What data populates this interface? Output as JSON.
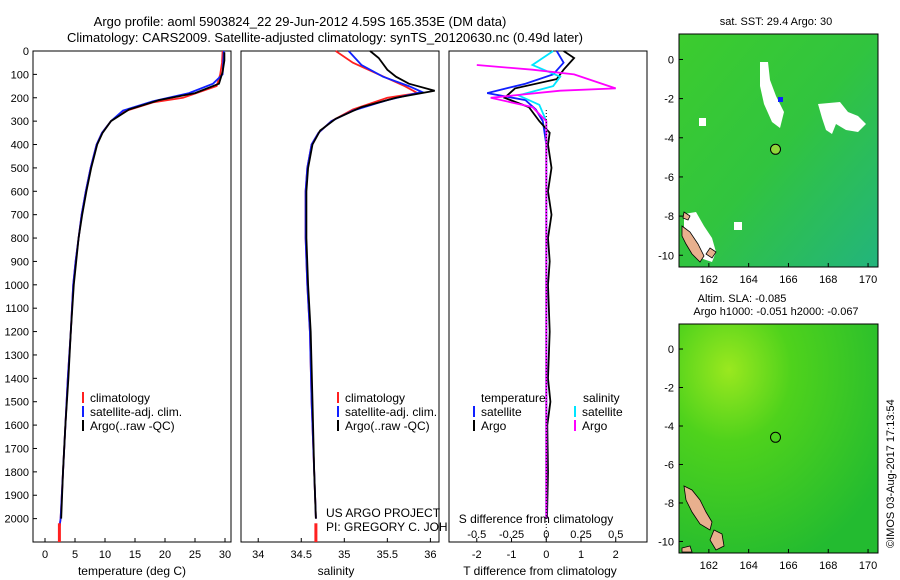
{
  "title": {
    "line1": "Argo profile: aoml 5903824_22 29-Jun-2012 4.59S 165.353E (DM data)",
    "line2": "Climatology: CARS2009. Satellite-adjusted climatology: synTS_20120630.nc (0.49d later)"
  },
  "colors": {
    "climatology": "#ff2020",
    "satellite": "#1020ff",
    "argo": "#000000",
    "sat_salinity": "#00e5ff",
    "argo_salinity": "#ff00ff",
    "map_green": "#2fc82f"
  },
  "chart_data": [
    {
      "type": "line",
      "name": "temperature",
      "xlabel": "temperature (deg C)",
      "ylabel": "",
      "xlim": [
        -2,
        31
      ],
      "ylim": [
        2100,
        0
      ],
      "xticks": [
        0,
        5,
        10,
        15,
        20,
        25,
        30
      ],
      "yticks": [
        0,
        100,
        200,
        300,
        400,
        500,
        600,
        700,
        800,
        900,
        1000,
        1100,
        1200,
        1300,
        1400,
        1500,
        1600,
        1700,
        1800,
        1900,
        2000
      ],
      "legend": [
        "climatology",
        "satellite-adj. clim.",
        "Argo(..raw -QC)"
      ],
      "series": [
        {
          "name": "climatology",
          "color": "#ff2020",
          "points": [
            [
              29.6,
              0
            ],
            [
              29.5,
              50
            ],
            [
              29.2,
              100
            ],
            [
              28.6,
              150
            ],
            [
              23,
              200
            ],
            [
              18,
              220
            ],
            [
              13,
              260
            ],
            [
              11,
              300
            ],
            [
              9.5,
              350
            ],
            [
              8.6,
              400
            ],
            [
              7.6,
              500
            ],
            [
              6.8,
              600
            ],
            [
              6.1,
              700
            ],
            [
              5.6,
              800
            ],
            [
              5.1,
              900
            ],
            [
              4.7,
              1000
            ],
            [
              4.3,
              1200
            ],
            [
              3.8,
              1400
            ],
            [
              3.4,
              1600
            ],
            [
              3.0,
              1800
            ],
            [
              2.6,
              2000
            ],
            [
              2.4,
              2040
            ]
          ]
        },
        {
          "name": "satellite-adj. clim.",
          "color": "#1020ff",
          "points": [
            [
              29.8,
              0
            ],
            [
              29.7,
              50
            ],
            [
              29.6,
              100
            ],
            [
              28,
              140
            ],
            [
              24,
              180
            ],
            [
              18,
              215
            ],
            [
              13,
              255
            ],
            [
              11,
              300
            ],
            [
              9.5,
              350
            ],
            [
              8.6,
              400
            ],
            [
              7.6,
              500
            ],
            [
              6.8,
              600
            ],
            [
              6.1,
              700
            ],
            [
              5.6,
              800
            ],
            [
              5.1,
              900
            ],
            [
              4.7,
              1000
            ],
            [
              4.3,
              1200
            ],
            [
              3.8,
              1400
            ],
            [
              3.4,
              1600
            ],
            [
              3.0,
              1800
            ],
            [
              2.6,
              2000
            ],
            [
              2.4,
              2040
            ]
          ]
        },
        {
          "name": "Argo(..raw -QC)",
          "color": "#000000",
          "points": [
            [
              29.9,
              5
            ],
            [
              29.9,
              40
            ],
            [
              29.6,
              90
            ],
            [
              29,
              140
            ],
            [
              25,
              180
            ],
            [
              19,
              210
            ],
            [
              14,
              250
            ],
            [
              11,
              300
            ],
            [
              9.6,
              350
            ],
            [
              8.7,
              400
            ],
            [
              7.7,
              500
            ],
            [
              6.9,
              600
            ],
            [
              6.2,
              700
            ],
            [
              5.6,
              800
            ],
            [
              5.2,
              900
            ],
            [
              4.8,
              1000
            ],
            [
              4.3,
              1200
            ],
            [
              3.9,
              1400
            ],
            [
              3.4,
              1600
            ],
            [
              3.0,
              1800
            ],
            [
              2.7,
              2000
            ]
          ]
        }
      ]
    },
    {
      "type": "line",
      "name": "salinity",
      "xlabel": "salinity",
      "ylabel": "",
      "xlim": [
        33.8,
        36.1
      ],
      "ylim": [
        2100,
        0
      ],
      "xticks": [
        34,
        34.5,
        35,
        35.5,
        36
      ],
      "legend": [
        "climatology",
        "satellite-adj. clim.",
        "Argo(..raw -QC)"
      ],
      "annotation": [
        "US ARGO PROJECT",
        "PI: GREGORY C. JOHNSON"
      ],
      "series": [
        {
          "name": "climatology",
          "color": "#ff2020",
          "points": [
            [
              34.9,
              0
            ],
            [
              35.1,
              50
            ],
            [
              35.4,
              100
            ],
            [
              35.7,
              150
            ],
            [
              35.85,
              180
            ],
            [
              35.5,
              200
            ],
            [
              35.1,
              250
            ],
            [
              34.85,
              300
            ],
            [
              34.7,
              350
            ],
            [
              34.62,
              400
            ],
            [
              34.57,
              500
            ],
            [
              34.55,
              600
            ],
            [
              34.55,
              800
            ],
            [
              34.57,
              1000
            ],
            [
              34.6,
              1200
            ],
            [
              34.62,
              1500
            ],
            [
              34.65,
              1800
            ],
            [
              34.67,
              2000
            ]
          ]
        },
        {
          "name": "satellite-adj. clim.",
          "color": "#1020ff",
          "points": [
            [
              35.05,
              0
            ],
            [
              35.2,
              60
            ],
            [
              35.45,
              110
            ],
            [
              35.75,
              150
            ],
            [
              35.9,
              175
            ],
            [
              35.5,
              210
            ],
            [
              35.1,
              255
            ],
            [
              34.85,
              300
            ],
            [
              34.7,
              350
            ],
            [
              34.62,
              400
            ],
            [
              34.57,
              500
            ],
            [
              34.55,
              600
            ],
            [
              34.55,
              800
            ],
            [
              34.57,
              1000
            ],
            [
              34.6,
              1200
            ],
            [
              34.62,
              1500
            ],
            [
              34.65,
              1800
            ],
            [
              34.67,
              2000
            ]
          ]
        },
        {
          "name": "Argo(..raw -QC)",
          "color": "#000000",
          "points": [
            [
              35.3,
              0
            ],
            [
              35.4,
              30
            ],
            [
              35.5,
              80
            ],
            [
              35.6,
              110
            ],
            [
              35.75,
              140
            ],
            [
              36.05,
              170
            ],
            [
              35.6,
              200
            ],
            [
              35.2,
              240
            ],
            [
              34.9,
              290
            ],
            [
              34.72,
              340
            ],
            [
              34.63,
              400
            ],
            [
              34.58,
              500
            ],
            [
              34.56,
              600
            ],
            [
              34.56,
              800
            ],
            [
              34.58,
              1000
            ],
            [
              34.61,
              1200
            ],
            [
              34.63,
              1500
            ],
            [
              34.65,
              1800
            ],
            [
              34.67,
              2000
            ]
          ]
        }
      ]
    },
    {
      "type": "line",
      "name": "differences",
      "xlabel": "T difference from climatology",
      "x2label": "S difference from climatology",
      "xlim": [
        -2.8,
        2.9
      ],
      "ylim": [
        2100,
        0
      ],
      "xticks": [
        -2,
        -1,
        0,
        1,
        2
      ],
      "x2ticks": [
        -0.5,
        -0.25,
        0,
        0.25,
        0.5
      ],
      "legend": {
        "temperature": [
          "satellite",
          "Argo"
        ],
        "salinity": [
          "satellite",
          "Argo"
        ]
      },
      "series": [
        {
          "name": "temperature satellite",
          "color": "#1020ff",
          "scale": "T",
          "points": [
            [
              0.3,
              0
            ],
            [
              0.5,
              50
            ],
            [
              0.2,
              100
            ],
            [
              -0.6,
              140
            ],
            [
              -1.7,
              180
            ],
            [
              -0.6,
              210
            ],
            [
              -0.3,
              250
            ],
            [
              -0.1,
              300
            ],
            [
              0,
              400
            ],
            [
              0,
              800
            ],
            [
              0,
              1200
            ],
            [
              0,
              1600
            ],
            [
              0,
              2000
            ]
          ]
        },
        {
          "name": "temperature Argo",
          "color": "#000000",
          "scale": "T",
          "points": [
            [
              0.5,
              0
            ],
            [
              0.8,
              30
            ],
            [
              0.5,
              80
            ],
            [
              0.3,
              120
            ],
            [
              -0.9,
              160
            ],
            [
              -1.2,
              200
            ],
            [
              -0.5,
              240
            ],
            [
              -0.2,
              300
            ],
            [
              0.1,
              350
            ],
            [
              0.05,
              400
            ],
            [
              0.15,
              500
            ],
            [
              0.05,
              600
            ],
            [
              0.15,
              700
            ],
            [
              0.05,
              800
            ],
            [
              0.1,
              900
            ],
            [
              0.05,
              1000
            ],
            [
              0.1,
              1200
            ],
            [
              0.05,
              1400
            ],
            [
              0.12,
              1500
            ],
            [
              0.03,
              1600
            ],
            [
              0.05,
              1800
            ],
            [
              0.02,
              2000
            ]
          ]
        },
        {
          "name": "salinity satellite",
          "color": "#00e5ff",
          "scale": "S",
          "points": [
            [
              0.05,
              0
            ],
            [
              -0.1,
              60
            ],
            [
              0.1,
              110
            ],
            [
              0.05,
              150
            ],
            [
              -0.2,
              190
            ],
            [
              -0.05,
              230
            ],
            [
              0,
              300
            ],
            [
              0,
              800
            ],
            [
              0,
              1200
            ],
            [
              0,
              1600
            ],
            [
              0,
              2000
            ]
          ]
        },
        {
          "name": "salinity Argo",
          "color": "#ff00ff",
          "scale": "S",
          "points": [
            [
              -0.5,
              60
            ],
            [
              -0.1,
              80
            ],
            [
              0.2,
              100
            ],
            [
              0.5,
              160
            ],
            [
              0.1,
              170
            ],
            [
              -0.4,
              200
            ],
            [
              -0.1,
              240
            ],
            [
              0,
              300
            ],
            [
              0,
              2000
            ]
          ]
        }
      ]
    }
  ],
  "maps": [
    {
      "title": "sat. SST: 29.4 Argo: 30",
      "xticks": [
        162,
        164,
        166,
        168,
        170
      ],
      "xlim": [
        160.5,
        170.5
      ],
      "yticks": [
        0,
        -2,
        -4,
        -6,
        -8,
        -10
      ],
      "ylim": [
        -10.6,
        1.3
      ],
      "marker": [
        165.35,
        -4.59
      ]
    },
    {
      "title_line1": "Altim. SLA: -0.085",
      "title_line2": "Argo h1000: -0.051 h2000: -0.067",
      "xticks": [
        162,
        164,
        166,
        168,
        170
      ],
      "xlim": [
        160.5,
        170.5
      ],
      "yticks": [
        0,
        -2,
        -4,
        -6,
        -8,
        -10
      ],
      "ylim": [
        -10.6,
        1.3
      ],
      "marker": [
        165.35,
        -4.59
      ]
    }
  ],
  "footer": "©IMOS 03-Aug-2017 17:13:54"
}
